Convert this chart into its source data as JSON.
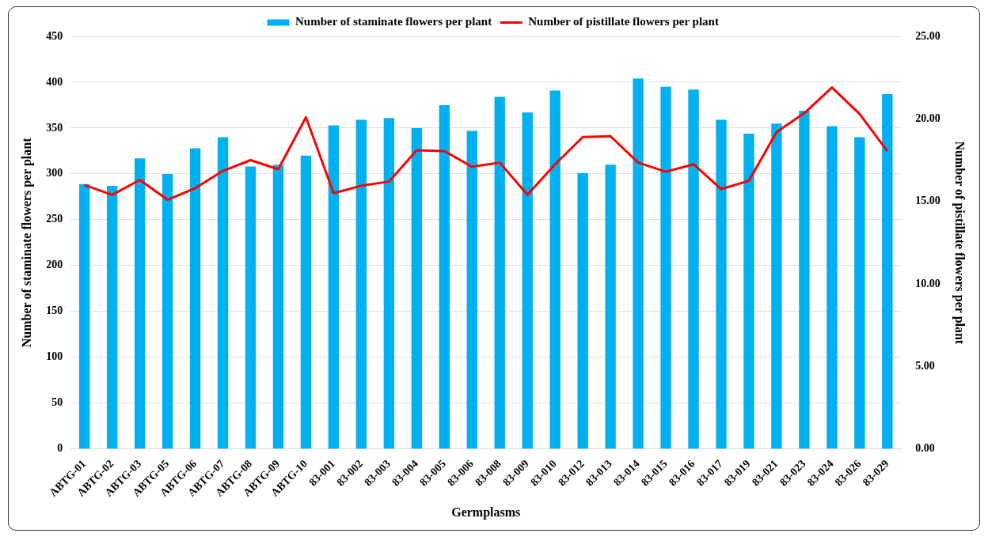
{
  "chart_data": {
    "type": "bar",
    "xlabel": "Germplasms",
    "ylabel": "Number of staminate flowers per plant",
    "y2label": "Number of pistillate flowers per plant",
    "categories": [
      "ABTG-01",
      "ABTG-02",
      "ABTG-03",
      "ABTG-05",
      "ABTG-06",
      "ABTG-07",
      "ABTG-08",
      "ABTG-09",
      "ABTG-10",
      "83-001",
      "83-002",
      "83-003",
      "83-004",
      "83-005",
      "83-006",
      "83-008",
      "83-009",
      "83-010",
      "83-012",
      "83-013",
      "83-014",
      "83-015",
      "83-016",
      "83-017",
      "83-019",
      "83-021",
      "83-023",
      "83-024",
      "83-026",
      "83-029"
    ],
    "series": [
      {
        "name": "Number of staminate flowers per plant",
        "color": "#00b0f0",
        "values": [
          289,
          287,
          317,
          300,
          328,
          340,
          308,
          310,
          320,
          353,
          359,
          361,
          350,
          375,
          347,
          384,
          367,
          391,
          301,
          310,
          404,
          395,
          392,
          359,
          344,
          355,
          369,
          352,
          340,
          387
        ]
      },
      {
        "name": "Number of pistillate flowers per plant",
        "type": "line",
        "axis": "y2",
        "color": "#ff0000",
        "values": [
          16.0,
          15.4,
          16.3,
          15.1,
          15.8,
          16.85,
          17.5,
          16.95,
          20.1,
          15.5,
          15.95,
          16.2,
          18.1,
          18.05,
          17.1,
          17.35,
          15.4,
          17.25,
          18.9,
          18.95,
          17.35,
          16.8,
          17.25,
          15.75,
          16.25,
          19.2,
          20.35,
          21.9,
          20.3,
          18.05
        ]
      }
    ],
    "ylim": [
      0,
      450
    ],
    "yticks": [
      0,
      50,
      100,
      150,
      200,
      250,
      300,
      350,
      400,
      450
    ],
    "y2lim": [
      0,
      25
    ],
    "y2ticks": [
      {
        "value": 0,
        "label": "0.00"
      },
      {
        "value": 5,
        "label": "5.00"
      },
      {
        "value": 10,
        "label": "10.00"
      },
      {
        "value": 15,
        "label": "15.00"
      },
      {
        "value": 20,
        "label": "20.00"
      },
      {
        "value": 25,
        "label": "25.00"
      }
    ],
    "grid": "y",
    "legend": "top",
    "marker": "none",
    "line_style": "solid"
  }
}
